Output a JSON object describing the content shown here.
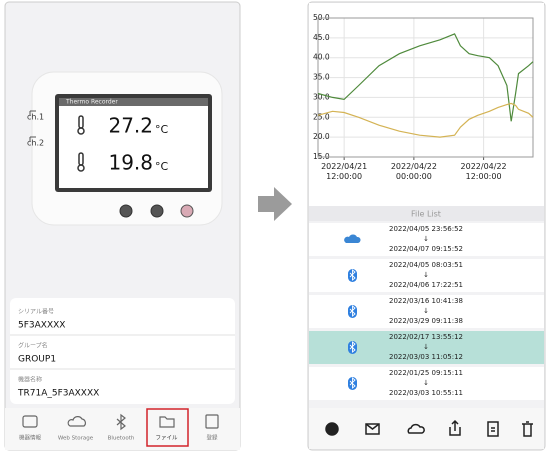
{
  "device": {
    "name": "Thermo Recorder",
    "channels": [
      {
        "label": "ch.1",
        "value": 27.2,
        "unit": "°C"
      },
      {
        "label": "ch.2",
        "value": 19.8,
        "unit": "°C"
      }
    ]
  },
  "info": [
    {
      "label": "シリアル番号",
      "value": "5F3AXXXX"
    },
    {
      "label": "グループ名",
      "value": "GROUP1"
    },
    {
      "label": "機器名称",
      "value": "TR71A_5F3AXXXX"
    }
  ],
  "tabs": [
    {
      "label": "機器情報"
    },
    {
      "label": "Web Storage"
    },
    {
      "label": "Bluetooth"
    },
    {
      "label": "ファイル",
      "selected": true
    },
    {
      "label": "登録"
    }
  ],
  "chart_data": {
    "type": "line",
    "x": [
      "2022/04/21 07:30:00",
      "2022/04/21 10:00:00",
      "2022/04/21 12:00:00",
      "2022/04/21 14:30:00",
      "2022/04/21 18:00:00",
      "2022/04/21 21:30:00",
      "2022/04/22 01:00:00",
      "2022/04/22 04:30:00",
      "2022/04/22 07:00:00",
      "2022/04/22 08:00:00",
      "2022/04/22 09:30:00",
      "2022/04/22 11:00:00",
      "2022/04/22 13:00:00",
      "2022/04/22 14:30:00",
      "2022/04/22 16:00:00",
      "2022/04/22 16:45:00",
      "2022/04/22 17:30:00",
      "2022/04/22 18:00:00",
      "2022/04/22 19:45:00",
      "2022/04/22 20:30:00"
    ],
    "series": [
      {
        "name": "ch.1",
        "color": "#4f8a3c",
        "values": [
          31,
          30,
          29.5,
          33,
          38,
          41,
          43,
          44.5,
          46,
          43,
          41,
          40.5,
          40,
          38,
          33,
          24,
          31,
          36,
          38,
          39
        ]
      },
      {
        "name": "ch.2",
        "color": "#d4b354",
        "values": [
          25.5,
          26.5,
          26.2,
          25,
          23,
          21.5,
          20.5,
          20,
          20.5,
          22.5,
          24.5,
          25.5,
          26.5,
          27.5,
          28.2,
          28.5,
          28,
          27,
          26,
          25
        ]
      }
    ],
    "xlim": [
      "2022/04/21 07:30:00",
      "2022/04/22 20:30:00"
    ],
    "xticks": [
      {
        "value": "2022/04/21 12:00:00",
        "label": "2022/04/21\n12:00:00"
      },
      {
        "value": "2022/04/22 00:00:00",
        "label": "2022/04/22\n00:00:00"
      },
      {
        "value": "2022/04/22 12:00:00",
        "label": "2022/04/22\n12:00:00"
      }
    ],
    "ylim": [
      15,
      50
    ],
    "yticks": [
      {
        "value": 15,
        "label": "15.0"
      },
      {
        "value": 20,
        "label": "20.0"
      },
      {
        "value": 25,
        "label": "25.0"
      },
      {
        "value": 30,
        "label": "30.0"
      },
      {
        "value": 35,
        "label": "35.0"
      },
      {
        "value": 40,
        "label": "40.0"
      },
      {
        "value": 45,
        "label": "45.0"
      },
      {
        "value": 50,
        "label": "50.0"
      }
    ],
    "grid": true
  },
  "file_list": {
    "title": "File List",
    "items": [
      {
        "icon": "cloud",
        "start": "2022/04/05 23:56:52",
        "arrow": "↓",
        "end": "2022/04/07 09:15:52"
      },
      {
        "icon": "bluetooth",
        "start": "2022/04/05 08:03:51",
        "arrow": "↓",
        "end": "2022/04/06 17:22:51"
      },
      {
        "icon": "bluetooth",
        "start": "2022/03/16 10:41:38",
        "arrow": "↓",
        "end": "2022/03/29 09:11:38"
      },
      {
        "icon": "bluetooth",
        "start": "2022/02/17 13:55:12",
        "arrow": "↓",
        "end": "2022/03/03 11:05:12",
        "selected": true
      },
      {
        "icon": "bluetooth",
        "start": "2022/01/25 09:15:11",
        "arrow": "↓",
        "end": "2022/03/03 10:55:11"
      }
    ]
  }
}
